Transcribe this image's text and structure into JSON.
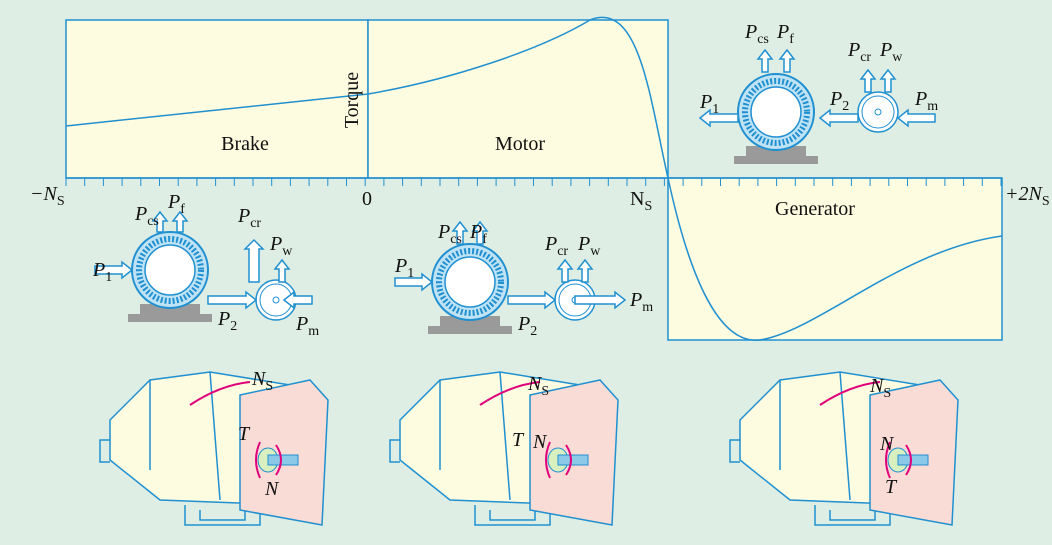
{
  "graph": {
    "regions": [
      "Brake",
      "Motor",
      "Generator"
    ],
    "y_label": "Torque",
    "x_labels": [
      [
        "−N",
        "S"
      ],
      [
        "0"
      ],
      [
        "N",
        "S"
      ],
      [
        "+2N",
        "S"
      ]
    ]
  },
  "power_diagrams": [
    {
      "labels": [
        [
          "P",
          "cs"
        ],
        [
          "P",
          "f"
        ],
        [
          "P",
          "cr"
        ],
        [
          "P",
          "w"
        ],
        [
          "P",
          "1"
        ],
        [
          "P",
          "2"
        ],
        [
          "P",
          "m"
        ]
      ]
    },
    {
      "labels": [
        [
          "P",
          "cs"
        ],
        [
          "P",
          "f"
        ],
        [
          "P",
          "cr"
        ],
        [
          "P",
          "w"
        ],
        [
          "P",
          "1"
        ],
        [
          "P",
          "2"
        ],
        [
          "P",
          "m"
        ]
      ]
    },
    {
      "labels": [
        [
          "P",
          "cs"
        ],
        [
          "P",
          "f"
        ],
        [
          "P",
          "cr"
        ],
        [
          "P",
          "w"
        ],
        [
          "P",
          "1"
        ],
        [
          "P",
          "2"
        ],
        [
          "P",
          "m"
        ]
      ]
    }
  ],
  "machines": [
    {
      "labels": [
        [
          "N",
          "S"
        ],
        [
          "T"
        ],
        [
          "N"
        ]
      ]
    },
    {
      "labels": [
        [
          "N",
          "S"
        ],
        [
          "T"
        ],
        [
          "N"
        ]
      ]
    },
    {
      "labels": [
        [
          "N",
          "S"
        ],
        [
          "N"
        ],
        [
          "T"
        ]
      ]
    }
  ]
}
